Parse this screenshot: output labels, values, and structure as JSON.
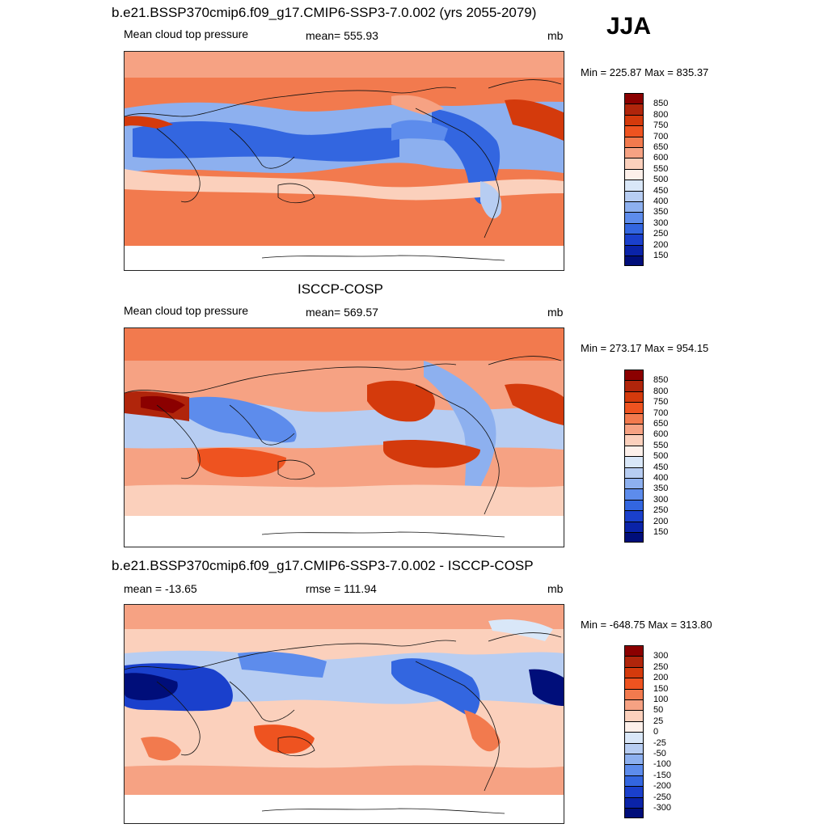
{
  "season": "JJA",
  "panels": [
    {
      "title": "b.e21.BSSP370cmip6.f09_g17.CMIP6-SSP3-7.0.002 (yrs 2055-2079)",
      "left_label": "Mean cloud top pressure",
      "center_label": "mean= 555.93",
      "units": "mb",
      "minmax": "Min = 225.87 Max = 835.37",
      "colorbar_labels": [
        "850",
        "800",
        "750",
        "700",
        "650",
        "600",
        "550",
        "500",
        "450",
        "400",
        "350",
        "300",
        "250",
        "200",
        "150"
      ],
      "colors": [
        "#8b0000",
        "#b0250b",
        "#d43a0c",
        "#ee5320",
        "#f27a4e",
        "#f6a283",
        "#fbd0bc",
        "#fdf0ea",
        "#d9e7f8",
        "#b7cdf2",
        "#8db0ef",
        "#5d8cec",
        "#3366e0",
        "#1a40cc",
        "#0a23a8",
        "#000e7a"
      ]
    },
    {
      "title": "ISCCP-COSP",
      "left_label": "Mean cloud top pressure",
      "center_label": "mean= 569.57",
      "units": "mb",
      "minmax": "Min = 273.17 Max = 954.15",
      "colorbar_labels": [
        "850",
        "800",
        "750",
        "700",
        "650",
        "600",
        "550",
        "500",
        "450",
        "400",
        "350",
        "300",
        "250",
        "200",
        "150"
      ],
      "colors": [
        "#8b0000",
        "#b0250b",
        "#d43a0c",
        "#ee5320",
        "#f27a4e",
        "#f6a283",
        "#fbd0bc",
        "#fdf0ea",
        "#d9e7f8",
        "#b7cdf2",
        "#8db0ef",
        "#5d8cec",
        "#3366e0",
        "#1a40cc",
        "#0a23a8",
        "#000e7a"
      ]
    },
    {
      "title": "b.e21.BSSP370cmip6.f09_g17.CMIP6-SSP3-7.0.002 - ISCCP-COSP",
      "left_label": "mean = -13.65",
      "center_label": "rmse = 111.94",
      "units": "mb",
      "minmax": "Min = -648.75 Max = 313.80",
      "colorbar_labels": [
        "300",
        "250",
        "200",
        "150",
        "100",
        "50",
        "25",
        "0",
        "-25",
        "-50",
        "-100",
        "-150",
        "-200",
        "-250",
        "-300"
      ],
      "colors": [
        "#8b0000",
        "#b0250b",
        "#d43a0c",
        "#ee5320",
        "#f27a4e",
        "#f6a283",
        "#fbd0bc",
        "#fdf0ea",
        "#d9e7f8",
        "#b7cdf2",
        "#8db0ef",
        "#5d8cec",
        "#3366e0",
        "#1a40cc",
        "#0a23a8",
        "#000e7a"
      ]
    }
  ]
}
